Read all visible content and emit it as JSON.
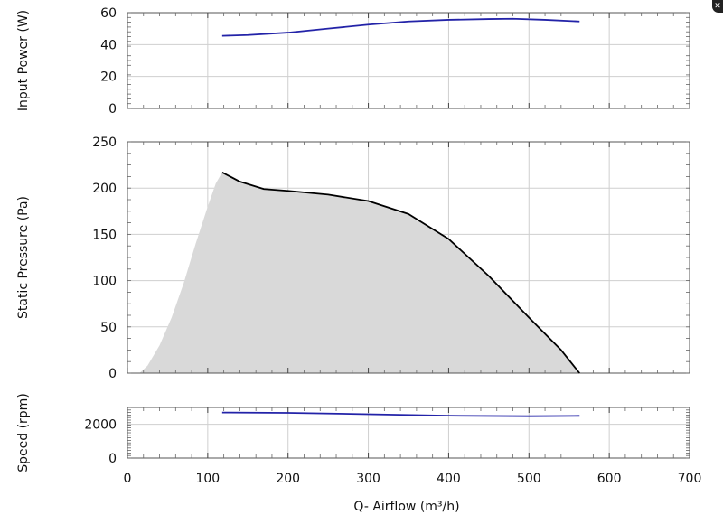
{
  "chart_data": {
    "type": "line",
    "x_axis": {
      "label": "Q- Airflow (m³/h)",
      "range": [
        0,
        700
      ],
      "ticks": [
        0,
        100,
        200,
        300,
        400,
        500,
        600,
        700
      ]
    },
    "panels": [
      {
        "id": "power",
        "ylabel": "Input Power (W)",
        "ylim": [
          0,
          60
        ],
        "yticks": [
          0,
          20,
          40,
          60
        ],
        "grid": true,
        "series": [
          {
            "color": "#2323a8",
            "x": [
              118,
              150,
              200,
              250,
              300,
              350,
              400,
              450,
              480,
              520,
              563
            ],
            "y": [
              45.5,
              46,
              47.5,
              50,
              52.5,
              54.5,
              55.5,
              56,
              56.2,
              55.5,
              54.5
            ]
          }
        ]
      },
      {
        "id": "pressure",
        "ylabel": "Static Pressure (Pa)",
        "ylim": [
          0,
          250
        ],
        "yticks": [
          0,
          50,
          100,
          150,
          200,
          250
        ],
        "grid": true,
        "series": [
          {
            "color": "#000000",
            "x": [
              118,
              140,
              170,
              200,
              250,
              300,
              350,
              400,
              450,
              500,
              540,
              563
            ],
            "y": [
              217,
              207,
              199,
              197,
              193,
              186,
              172,
              145,
              105,
              60,
              25,
              0
            ]
          }
        ],
        "shaded_region": {
          "color": "#d9d9d9",
          "lower_x": [
            15,
            25,
            40,
            55,
            70,
            85,
            100,
            110,
            118
          ],
          "lower_y": [
            0,
            8,
            30,
            60,
            97,
            140,
            180,
            205,
            217
          ]
        }
      },
      {
        "id": "speed",
        "ylabel": "Speed (rpm)",
        "ylim": [
          0,
          3000
        ],
        "yticks": [
          0,
          2000
        ],
        "grid": true,
        "series": [
          {
            "color": "#2323a8",
            "x": [
              118,
              200,
              300,
              400,
              500,
              563
            ],
            "y": [
              2700,
              2680,
              2600,
              2510,
              2480,
              2500
            ]
          }
        ]
      }
    ]
  }
}
